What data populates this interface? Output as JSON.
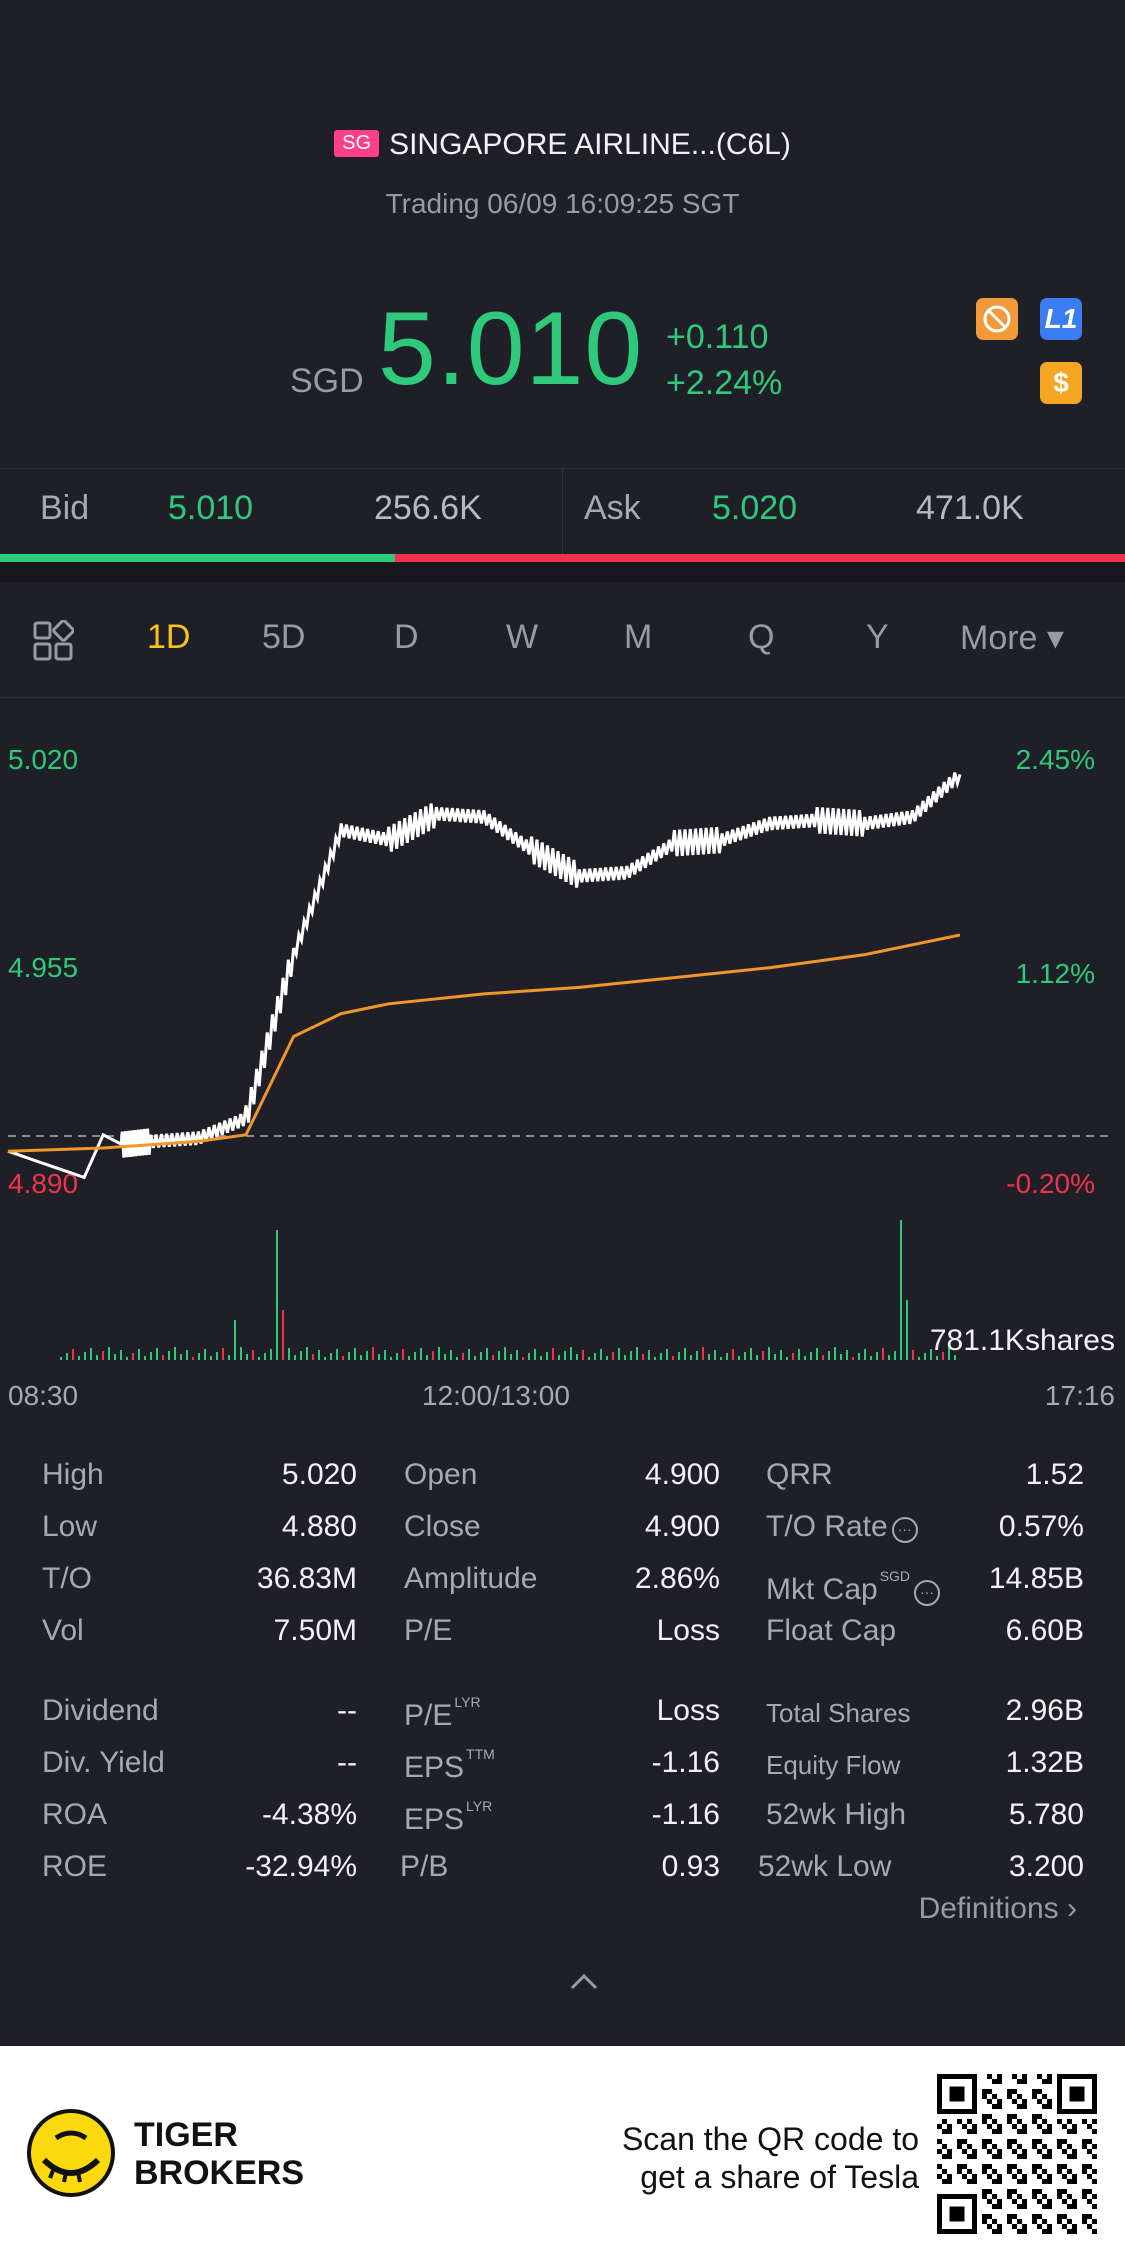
{
  "header": {
    "flag": "SG",
    "title": "SINGAPORE AIRLINE...(C6L)",
    "status": "Trading 06/09 16:09:25 SGT",
    "currency": "SGD",
    "price": "5.010",
    "change": "+0.110",
    "change_pct": "+2.24%",
    "badge_l1": "L1",
    "badge_dollar": "$"
  },
  "bidask": {
    "bid_label": "Bid",
    "bid_price": "5.010",
    "bid_size": "256.6K",
    "ask_label": "Ask",
    "ask_price": "5.020",
    "ask_size": "471.0K",
    "bid_ratio": 0.35
  },
  "tabs": {
    "items": [
      "1D",
      "5D",
      "D",
      "W",
      "M",
      "Q",
      "Y"
    ],
    "active": "1D",
    "more": "More ▾"
  },
  "chart": {
    "left_axis": [
      "5.020",
      "4.955",
      "4.890"
    ],
    "right_axis": [
      "2.45%",
      "1.12%",
      "-0.20%"
    ],
    "volume_label": "781.1Kshares",
    "time_labels": [
      "08:30",
      "12:00/13:00",
      "17:16"
    ]
  },
  "chart_data": {
    "type": "line",
    "series": [
      {
        "x": [
          0,
          8,
          10,
          12,
          15,
          20,
          25,
          30,
          35,
          40,
          45,
          50,
          55,
          60,
          65,
          70,
          75,
          80,
          85,
          90,
          95,
          100
        ],
        "y": [
          4.9,
          4.892,
          4.905,
          4.902,
          4.903,
          4.904,
          4.91,
          4.96,
          4.998,
          4.995,
          5.003,
          5.002,
          4.992,
          4.984,
          4.985,
          4.994,
          4.995,
          5.0,
          5.001,
          5.0,
          5.002,
          5.015
        ]
      },
      {
        "x": [
          0,
          10,
          20,
          25,
          30,
          35,
          40,
          50,
          60,
          70,
          80,
          90,
          100
        ],
        "y": [
          4.9,
          4.901,
          4.903,
          4.905,
          4.935,
          4.942,
          4.945,
          4.948,
          4.95,
          4.953,
          4.956,
          4.96,
          4.966
        ]
      }
    ],
    "ylim": [
      4.89,
      5.02
    ],
    "baseline": 4.9,
    "grid": false
  },
  "stats": {
    "col1": [
      {
        "k": "High",
        "v": "5.020"
      },
      {
        "k": "Low",
        "v": "4.880"
      },
      {
        "k": "T/O",
        "v": "36.83M"
      },
      {
        "k": "Vol",
        "v": "7.50M"
      },
      {
        "k": "Dividend",
        "v": "--"
      },
      {
        "k": "Div. Yield",
        "v": "--"
      },
      {
        "k": "ROA",
        "v": "-4.38%"
      },
      {
        "k": "ROE",
        "v": "-32.94%"
      }
    ],
    "col2": [
      {
        "k": "Open",
        "v": "4.900"
      },
      {
        "k": "Close",
        "v": "4.900"
      },
      {
        "k": "Amplitude",
        "v": "2.86%"
      },
      {
        "k": "P/E",
        "v": "Loss"
      },
      {
        "k": "P/E",
        "sup": "LYR",
        "v": "Loss"
      },
      {
        "k": "EPS",
        "sup": "TTM",
        "v": "-1.16"
      },
      {
        "k": "EPS",
        "sup": "LYR",
        "v": "-1.16"
      },
      {
        "k": "P/B",
        "v": "0.93"
      }
    ],
    "col3": [
      {
        "k": "QRR",
        "v": "1.52"
      },
      {
        "k": "T/O Rate",
        "v": "0.57%"
      },
      {
        "k": "Mkt Cap",
        "sup": "SGD",
        "v": "14.85B"
      },
      {
        "k": "Float Cap",
        "v": "6.60B"
      },
      {
        "k": "Total Shares",
        "v": "2.96B"
      },
      {
        "k": "Equity Flow",
        "v": "1.32B"
      },
      {
        "k": "52wk High",
        "v": "5.780"
      },
      {
        "k": "52wk Low",
        "v": "3.200"
      }
    ],
    "definitions": "Definitions"
  },
  "footer": {
    "brand_line1": "TIGER",
    "brand_line2": "BROKERS",
    "promo_line1": "Scan the QR code to",
    "promo_line2": "get a share of Tesla"
  }
}
